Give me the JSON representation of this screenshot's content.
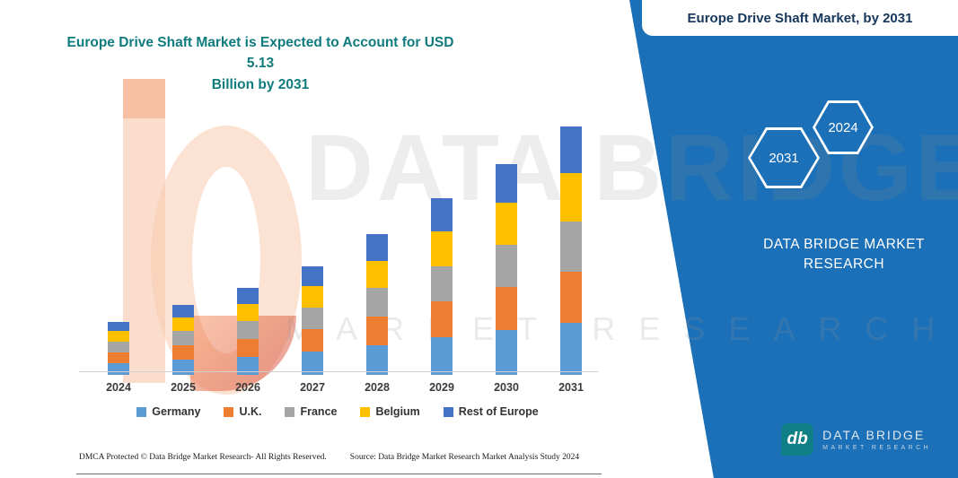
{
  "header_box": {
    "title": "Europe Drive Shaft Market, by 2031"
  },
  "chart_title": {
    "line1": "Europe Drive Shaft Market is Expected to Account for USD 5.13",
    "line2": "Billion by 2031"
  },
  "side_panel": {
    "panel_color": "#1C70B7",
    "hexagons": [
      {
        "label": "2031"
      },
      {
        "label": "2024"
      }
    ],
    "brand_line1": "DATA BRIDGE MARKET",
    "brand_line2": "RESEARCH"
  },
  "watermark": {
    "line1": "DATA BRIDGE",
    "line2": "MARKET RESEARCH"
  },
  "logo": {
    "icon": "db-monogram",
    "name": "DATA BRIDGE",
    "tagline": "MARKET RESEARCH"
  },
  "footer": {
    "dmca": "DMCA Protected © Data Bridge Market Research-  All Rights Reserved.",
    "source": "Source: Data Bridge Market Research  Market Analysis Study 2024"
  },
  "chart_data": {
    "type": "bar",
    "stacked": true,
    "title": "Europe Drive Shaft Market is Expected to Account for USD 5.13 Billion by 2031",
    "categories": [
      "2024",
      "2025",
      "2026",
      "2027",
      "2028",
      "2029",
      "2030",
      "2031"
    ],
    "series": [
      {
        "name": "Germany",
        "color": "#5B9BD5",
        "values": [
          0.24,
          0.31,
          0.38,
          0.48,
          0.62,
          0.78,
          0.93,
          1.08
        ]
      },
      {
        "name": "U.K.",
        "color": "#ED7D31",
        "values": [
          0.23,
          0.3,
          0.37,
          0.46,
          0.59,
          0.74,
          0.89,
          1.05
        ]
      },
      {
        "name": "France",
        "color": "#A5A5A5",
        "values": [
          0.22,
          0.29,
          0.36,
          0.45,
          0.58,
          0.73,
          0.87,
          1.03
        ]
      },
      {
        "name": "Belgium",
        "color": "#FFC000",
        "values": [
          0.21,
          0.28,
          0.35,
          0.44,
          0.57,
          0.72,
          0.86,
          1.0
        ]
      },
      {
        "name": "Rest of Europe",
        "color": "#4472C4",
        "values": [
          0.2,
          0.27,
          0.34,
          0.42,
          0.54,
          0.68,
          0.8,
          0.97
        ]
      }
    ],
    "totals_usd_billion": {
      "2031": 5.13
    },
    "ylim": [
      0,
      5.5
    ],
    "grid": false,
    "legend_position": "bottom",
    "xlabel": "",
    "ylabel": ""
  }
}
